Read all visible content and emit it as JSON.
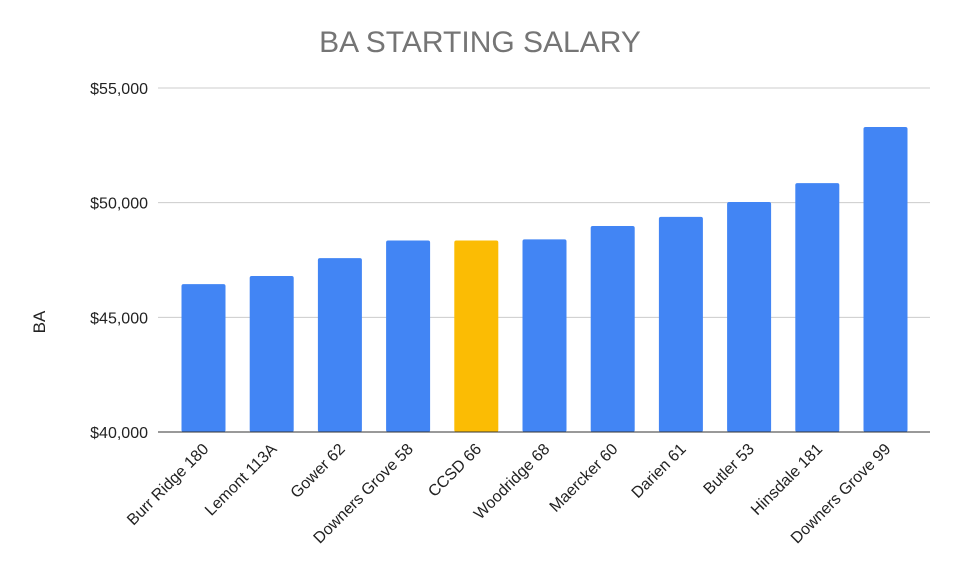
{
  "chart_data": {
    "type": "bar",
    "title": "BA STARTING SALARY",
    "xlabel": "",
    "ylabel": "BA",
    "ylim": [
      40000,
      55000
    ],
    "yticks": [
      {
        "value": 40000,
        "label": "$40,000"
      },
      {
        "value": 45000,
        "label": "$45,000"
      },
      {
        "value": 50000,
        "label": "$50,000"
      },
      {
        "value": 55000,
        "label": "$55,000"
      }
    ],
    "grid": true,
    "legend": "none",
    "categories": [
      "Burr Ridge 180",
      "Lemont 113A",
      "Gower 62",
      "Downers Grove 58",
      "CCSD 66",
      "Woodridge 68",
      "Maercker 60",
      "Darien 61",
      "Butler 53",
      "Hinsdale 181",
      "Downers Grove 99"
    ],
    "values": [
      46450,
      46800,
      47580,
      48350,
      48350,
      48400,
      48980,
      49380,
      50030,
      50850,
      53300
    ],
    "bar_color": "#4285f4",
    "highlight": {
      "category": "CCSD 66",
      "color": "#fbbc04"
    }
  }
}
